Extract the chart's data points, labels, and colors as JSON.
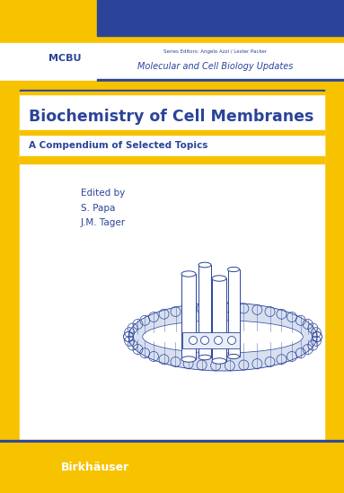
{
  "background_color": "#F7C200",
  "blue_color": "#2B4499",
  "white_color": "#FFFFFF",
  "yellow_color": "#F7C200",
  "title": "Biochemistry of Cell Membranes",
  "subtitle": "A Compendium of Selected Topics",
  "edited_by": "Edited by",
  "author1": "S. Papa",
  "author2": "J.M. Tager",
  "publisher": "Birkhäuser",
  "series_abbr": "MCBU",
  "series_editors_label": "Series Editors: Angelo Azzi / Lester Packer",
  "series_name_parts": [
    {
      "text": "M",
      "bold": true
    },
    {
      "text": "olecular and ",
      "bold": false
    },
    {
      "text": "C",
      "bold": true
    },
    {
      "text": "ell ",
      "bold": false
    },
    {
      "text": "B",
      "bold": true
    },
    {
      "text": "iology ",
      "bold": false
    },
    {
      "text": "U",
      "bold": true
    },
    {
      "text": "pdates",
      "bold": false
    }
  ],
  "series_name": "Molecular and Cell Biology Updates",
  "membrane_color": "#8899CC",
  "membrane_color_dark": "#2B4499"
}
